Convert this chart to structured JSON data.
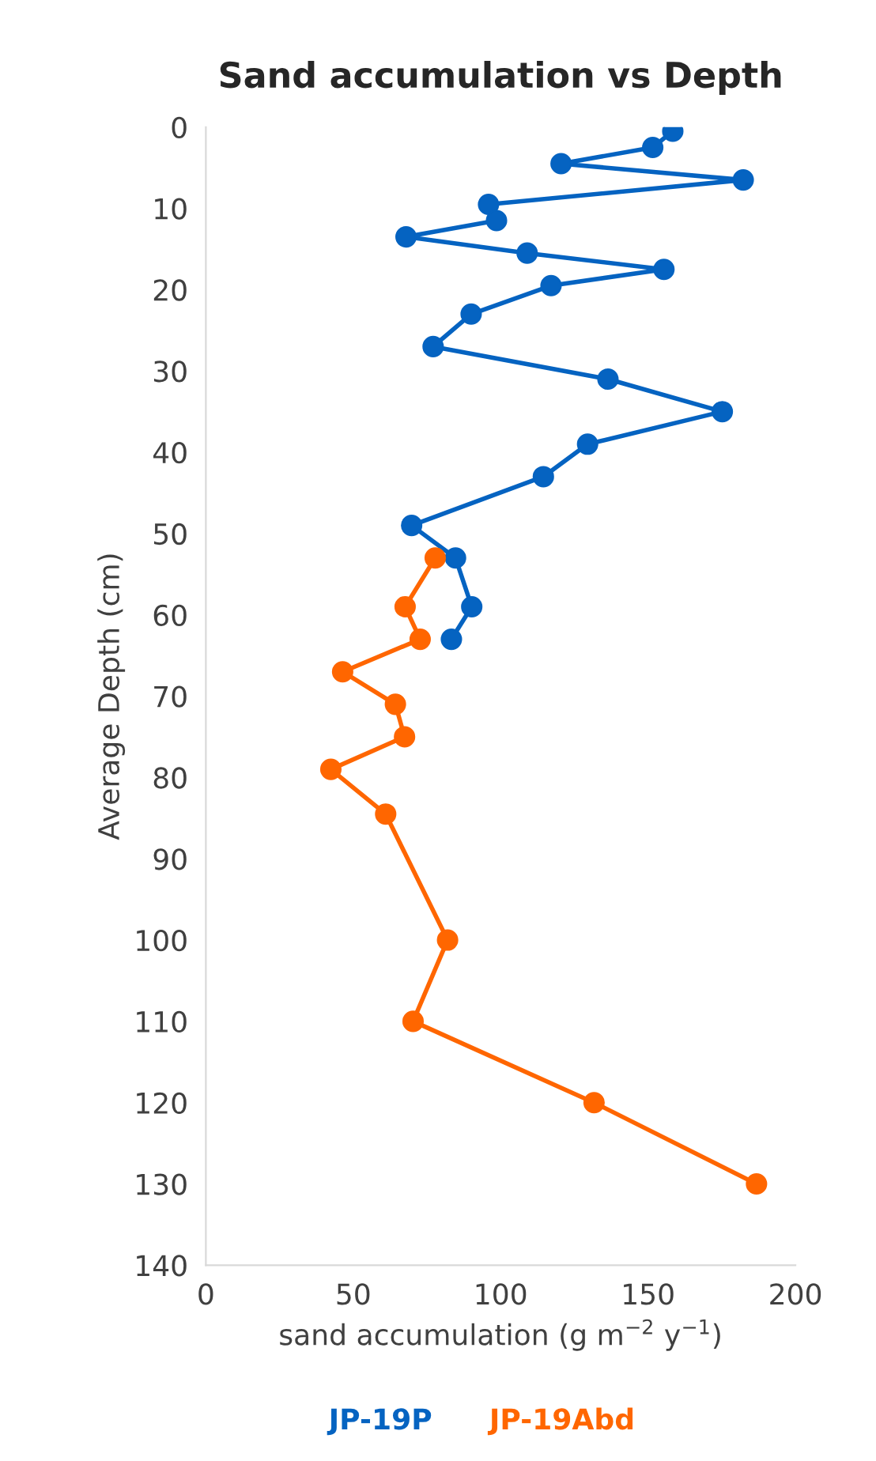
{
  "chart_data": {
    "type": "line",
    "title": "Sand accumulation vs Depth",
    "xlabel": "sand accumulation (g m$^{−2}$ y$^{−1}$)",
    "ylabel": "Average Depth (cm)",
    "xlim": [
      0,
      200
    ],
    "xticks": [
      0,
      50,
      100,
      150,
      200
    ],
    "ylim": [
      140,
      0
    ],
    "yticks": [
      0,
      10,
      20,
      30,
      40,
      50,
      60,
      70,
      80,
      90,
      100,
      110,
      120,
      130,
      140
    ],
    "grid": false,
    "legend": "bottom",
    "marker": "circle",
    "line_style": "solid",
    "series": [
      {
        "name": "JP-19P",
        "color": "#0563c1",
        "x": [
          158.4,
          151.6,
          120.5,
          182.3,
          95.9,
          98.6,
          67.9,
          109,
          155.4,
          117.1,
          90,
          77.1,
          136.4,
          175.2,
          129.5,
          114.5,
          69.8,
          84.7,
          90.2,
          83.3
        ],
        "values": [
          0.5,
          2.5,
          4.5,
          6.5,
          9.5,
          11.5,
          13.5,
          15.5,
          17.5,
          19.5,
          23,
          27,
          31,
          35,
          39,
          43,
          49,
          53,
          59,
          63
        ]
      },
      {
        "name": "JP-19Abd",
        "color": "#ff6600",
        "x": [
          77.8,
          67.6,
          72.7,
          46.4,
          64.3,
          67.4,
          42.4,
          61,
          82,
          70.3,
          131.7,
          186.8
        ],
        "values": [
          53,
          59,
          63,
          67,
          71,
          75,
          79,
          84.5,
          100,
          110,
          120,
          130
        ]
      }
    ]
  }
}
